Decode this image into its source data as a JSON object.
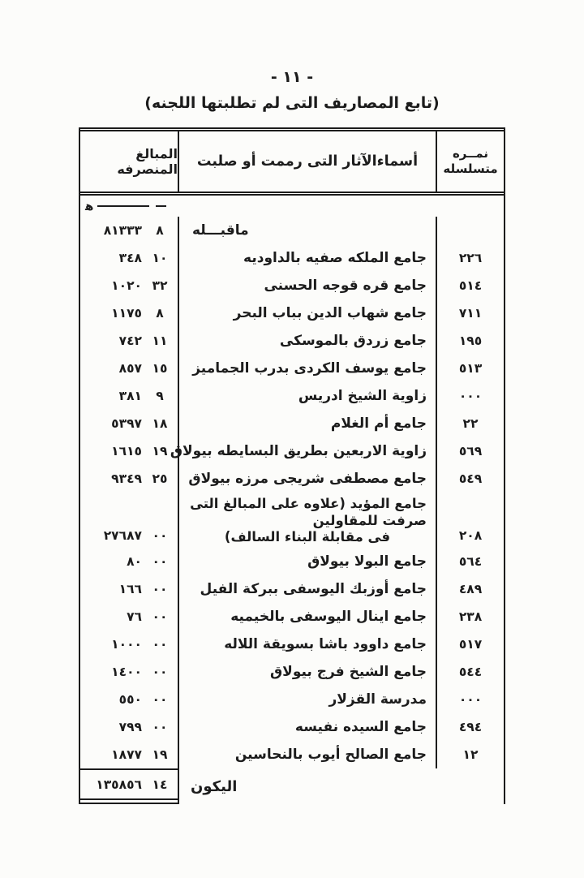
{
  "colors": {
    "ink": "#1c1c1c",
    "paper": "#fcfcfa"
  },
  "page": {
    "number": "- ١١ -",
    "subtitle": "(تابع المصاريف التى لم تطلبتها اللجنه)"
  },
  "table": {
    "headers": {
      "serial_line1": "نمــره",
      "serial_line2": "متسلسله",
      "monuments": "أسماءالآثار التى رممت أو صلبت",
      "amounts": "المبالغ المنصرفه"
    },
    "units_symbol": "ﻫ",
    "rows": [
      {
        "serial": "",
        "name": "ماقبـــله",
        "name_align": "left",
        "amount": "٨١٣٣٣",
        "fraction": "٨"
      },
      {
        "serial": "٢٢٦",
        "name": "جامع الملكه صفيه بالداوديه",
        "amount": "٣٤٨",
        "fraction": "١٠"
      },
      {
        "serial": "٥١٤",
        "name": "جامع قره قوجه الحسنى",
        "amount": "١٠٢٠",
        "fraction": "٣٢"
      },
      {
        "serial": "٧١١",
        "name": "جامع شهاب الدين بباب البحر",
        "amount": "١١٧٥",
        "fraction": "٨"
      },
      {
        "serial": "١٩٥",
        "name": "جامع زردق بالموسكى",
        "amount": "٧٤٢",
        "fraction": "١١"
      },
      {
        "serial": "٥١٣",
        "name": "جامع يوسف الكردى بدرب الجماميز",
        "amount": "٨٥٧",
        "fraction": "١٥"
      },
      {
        "serial": "٠٠٠",
        "name": "زاوية الشيخ ادريس",
        "amount": "٣٨١",
        "fraction": "٩"
      },
      {
        "serial": "٢٢",
        "name": "جامع أم الغلام",
        "amount": "٥٣٩٧",
        "fraction": "١٨"
      },
      {
        "serial": "٥٦٩",
        "name": "زاوية الاربعين بطريق البسايطه بيولاق",
        "amount": "١٦١٥",
        "fraction": "١٩"
      },
      {
        "serial": "٥٤٩",
        "name": "جامع مصطفى شريجى مرزه بيولاق",
        "amount": "٩٣٤٩",
        "fraction": "٢٥"
      },
      {
        "serial": "٢٠٨",
        "name": "جامع المؤيد (علاوه على المبالغ التى صرفت للمقاولين",
        "name2": "فى مقابلة البناء السالف)",
        "amount": "٢٧٦٨٧",
        "fraction": "٠٠"
      },
      {
        "serial": "٥٦٤",
        "name": "جامع البولا بيولاق",
        "amount": "٨٠",
        "fraction": "٠٠"
      },
      {
        "serial": "٤٨٩",
        "name": "جامع أوزبك اليوسفى ببركة الفيل",
        "amount": "١٦٦",
        "fraction": "٠٠"
      },
      {
        "serial": "٢٣٨",
        "name": "جامع اينال اليوسفى بالخيميه",
        "amount": "٧٦",
        "fraction": "٠٠"
      },
      {
        "serial": "٥١٧",
        "name": "جامع داوود باشا بسويقة اللاله",
        "amount": "١٠٠٠",
        "fraction": "٠٠"
      },
      {
        "serial": "٥٤٤",
        "name": "جامع الشيخ فرج بيولاق",
        "amount": "١٤٠٠",
        "fraction": "٠٠"
      },
      {
        "serial": "٠٠٠",
        "name": "مدرسة القزلار",
        "amount": "٥٥٠",
        "fraction": "٠٠"
      },
      {
        "serial": "٤٩٤",
        "name": "جامع السيده نفيسه",
        "amount": "٧٩٩",
        "fraction": "٠٠"
      },
      {
        "serial": "١٢",
        "name": "جامع الصالح أيوب بالنحاسين",
        "amount": "١٨٧٧",
        "fraction": "١٩"
      }
    ],
    "total": {
      "label": "اليكون",
      "amount": "١٣٥٨٥٦",
      "fraction": "١٤"
    }
  }
}
